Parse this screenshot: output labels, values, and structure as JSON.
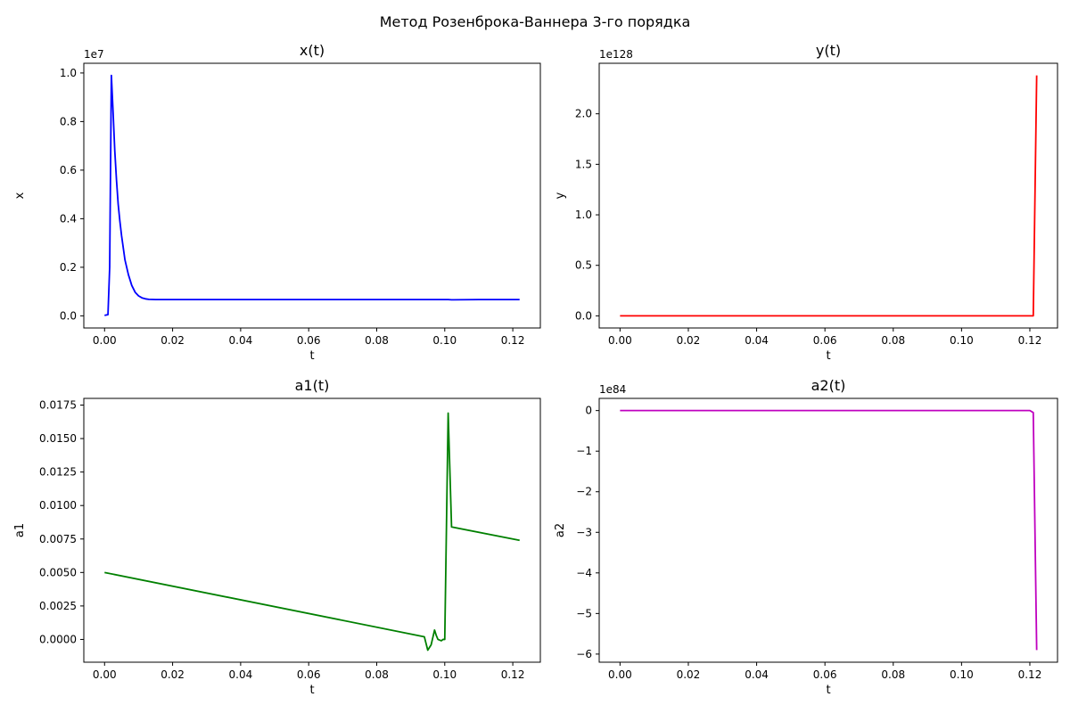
{
  "suptitle": "Метод Розенброка-Ваннера 3-го порядка",
  "chart_data": [
    {
      "type": "line",
      "title": "x(t)",
      "xlabel": "t",
      "ylabel": "x",
      "offset_text": "1e7",
      "color": "#0000ff",
      "xlim": [
        -0.0061,
        0.1281
      ],
      "ylim": [
        -0.05,
        1.04
      ],
      "xticks": [
        0.0,
        0.02,
        0.04,
        0.06,
        0.08,
        0.1,
        0.12
      ],
      "xtick_labels": [
        "0.00",
        "0.02",
        "0.04",
        "0.06",
        "0.08",
        "0.10",
        "0.12"
      ],
      "yticks": [
        0.0,
        0.2,
        0.4,
        0.6,
        0.8,
        1.0
      ],
      "ytick_labels": [
        "0.0",
        "0.2",
        "0.4",
        "0.6",
        "0.8",
        "1.0"
      ],
      "grid": false,
      "x": [
        0.0,
        0.001,
        0.0015,
        0.002,
        0.0025,
        0.003,
        0.0035,
        0.004,
        0.0045,
        0.005,
        0.006,
        0.007,
        0.008,
        0.009,
        0.01,
        0.011,
        0.012,
        0.013,
        0.015,
        0.02,
        0.04,
        0.06,
        0.08,
        0.1,
        0.101,
        0.102,
        0.11,
        0.122
      ],
      "y": [
        0.002,
        0.005,
        0.2,
        0.99,
        0.84,
        0.68,
        0.56,
        0.46,
        0.39,
        0.33,
        0.23,
        0.17,
        0.125,
        0.097,
        0.082,
        0.074,
        0.07,
        0.068,
        0.067,
        0.067,
        0.067,
        0.067,
        0.067,
        0.067,
        0.067,
        0.066,
        0.067,
        0.067
      ]
    },
    {
      "type": "line",
      "title": "y(t)",
      "xlabel": "t",
      "ylabel": "y",
      "offset_text": "1e128",
      "color": "#ff0000",
      "xlim": [
        -0.0061,
        0.1281
      ],
      "ylim": [
        -0.12,
        2.5
      ],
      "xticks": [
        0.0,
        0.02,
        0.04,
        0.06,
        0.08,
        0.1,
        0.12
      ],
      "xtick_labels": [
        "0.00",
        "0.02",
        "0.04",
        "0.06",
        "0.08",
        "0.10",
        "0.12"
      ],
      "yticks": [
        0.0,
        0.5,
        1.0,
        1.5,
        2.0
      ],
      "ytick_labels": [
        "0.0",
        "0.5",
        "1.0",
        "1.5",
        "2.0"
      ],
      "grid": false,
      "x": [
        0.0,
        0.02,
        0.04,
        0.06,
        0.08,
        0.1,
        0.12,
        0.121,
        0.122
      ],
      "y": [
        0.0,
        0.0,
        0.0,
        0.0,
        0.0,
        0.0,
        0.0,
        0.0,
        2.38
      ]
    },
    {
      "type": "line",
      "title": "a1(t)",
      "xlabel": "t",
      "ylabel": "a1",
      "offset_text": "",
      "color": "#008000",
      "xlim": [
        -0.0061,
        0.1281
      ],
      "ylim": [
        -0.0017,
        0.018
      ],
      "xticks": [
        0.0,
        0.02,
        0.04,
        0.06,
        0.08,
        0.1,
        0.12
      ],
      "xtick_labels": [
        "0.00",
        "0.02",
        "0.04",
        "0.06",
        "0.08",
        "0.10",
        "0.12"
      ],
      "yticks": [
        0.0,
        0.0025,
        0.005,
        0.0075,
        0.01,
        0.0125,
        0.015,
        0.0175
      ],
      "ytick_labels": [
        "0.0000",
        "0.0025",
        "0.0050",
        "0.0075",
        "0.0100",
        "0.0125",
        "0.0150",
        "0.0175"
      ],
      "grid": false,
      "x": [
        0.0,
        0.094,
        0.095,
        0.096,
        0.097,
        0.0975,
        0.098,
        0.099,
        0.0995,
        0.1,
        0.101,
        0.102,
        0.122
      ],
      "y": [
        0.005,
        0.0002,
        -0.0008,
        -0.0004,
        0.0007,
        0.0003,
        0.0,
        -0.0001,
        0.0,
        0.0,
        0.0169,
        0.0084,
        0.0074
      ]
    },
    {
      "type": "line",
      "title": "a2(t)",
      "xlabel": "t",
      "ylabel": "a2",
      "offset_text": "1e84",
      "color": "#bf00bf",
      "xlim": [
        -0.0061,
        0.1281
      ],
      "ylim": [
        -6.2,
        0.3
      ],
      "xticks": [
        0.0,
        0.02,
        0.04,
        0.06,
        0.08,
        0.1,
        0.12
      ],
      "xtick_labels": [
        "0.00",
        "0.02",
        "0.04",
        "0.06",
        "0.08",
        "0.10",
        "0.12"
      ],
      "yticks": [
        0,
        -1,
        -2,
        -3,
        -4,
        -5,
        -6
      ],
      "ytick_labels": [
        "0",
        "−1",
        "−2",
        "−3",
        "−4",
        "−5",
        "−6"
      ],
      "grid": false,
      "x": [
        0.0,
        0.02,
        0.04,
        0.06,
        0.08,
        0.1,
        0.12,
        0.121,
        0.122
      ],
      "y": [
        0.0,
        0.0,
        0.0,
        0.0,
        0.0,
        0.0,
        0.0,
        -0.05,
        -5.9
      ]
    }
  ]
}
